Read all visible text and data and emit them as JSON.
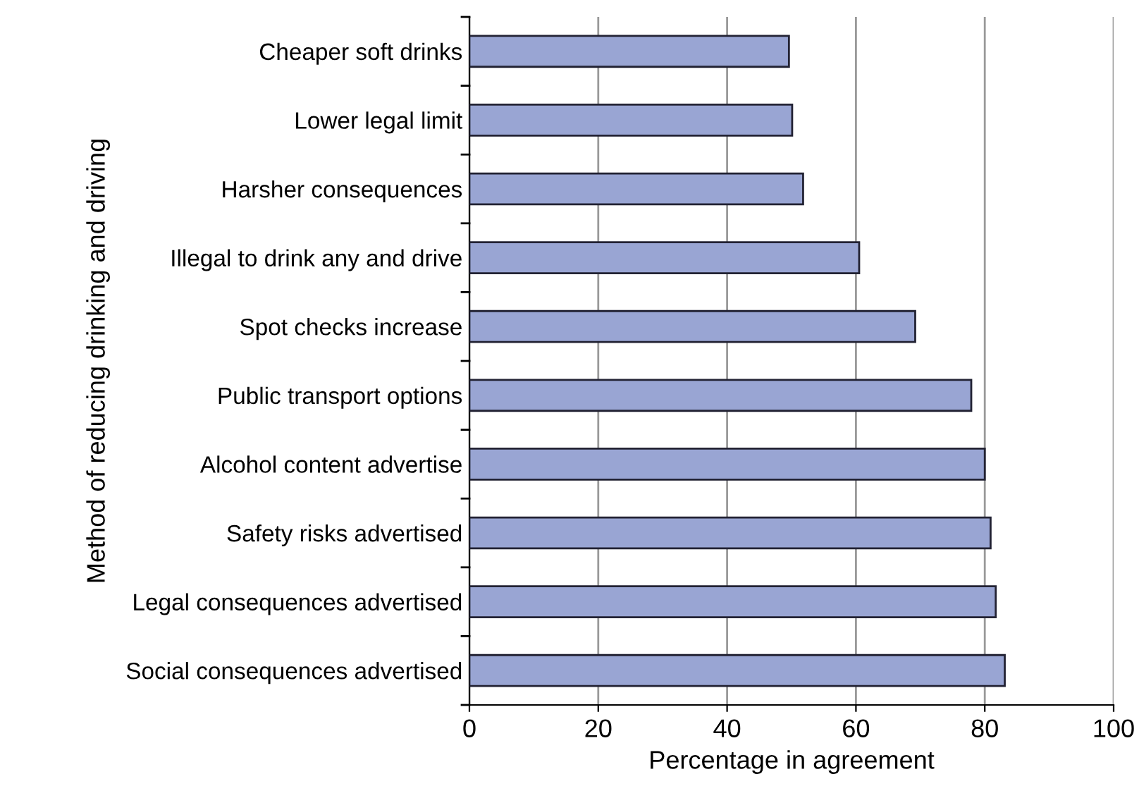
{
  "chart_data": {
    "type": "bar",
    "orientation": "horizontal",
    "xlabel": "Percentage in agreement",
    "ylabel": "Method of reducing drinking and driving",
    "categories": [
      "Cheaper soft drinks",
      "Lower legal limit",
      "Harsher consequences",
      "Illegal to drink any and drive",
      "Spot checks increase",
      "Public transport options",
      "Alcohol content advertise",
      "Safety risks advertised",
      "Legal consequences advertised",
      "Social consequences advertised"
    ],
    "values": [
      49.6,
      50.1,
      51.8,
      60.5,
      69.2,
      77.9,
      80.0,
      80.9,
      81.7,
      83.1
    ],
    "color": "#99a5d3",
    "xlim": [
      0,
      100
    ],
    "xticks": [
      0,
      20,
      40,
      60,
      80,
      100
    ],
    "grid": "x"
  }
}
